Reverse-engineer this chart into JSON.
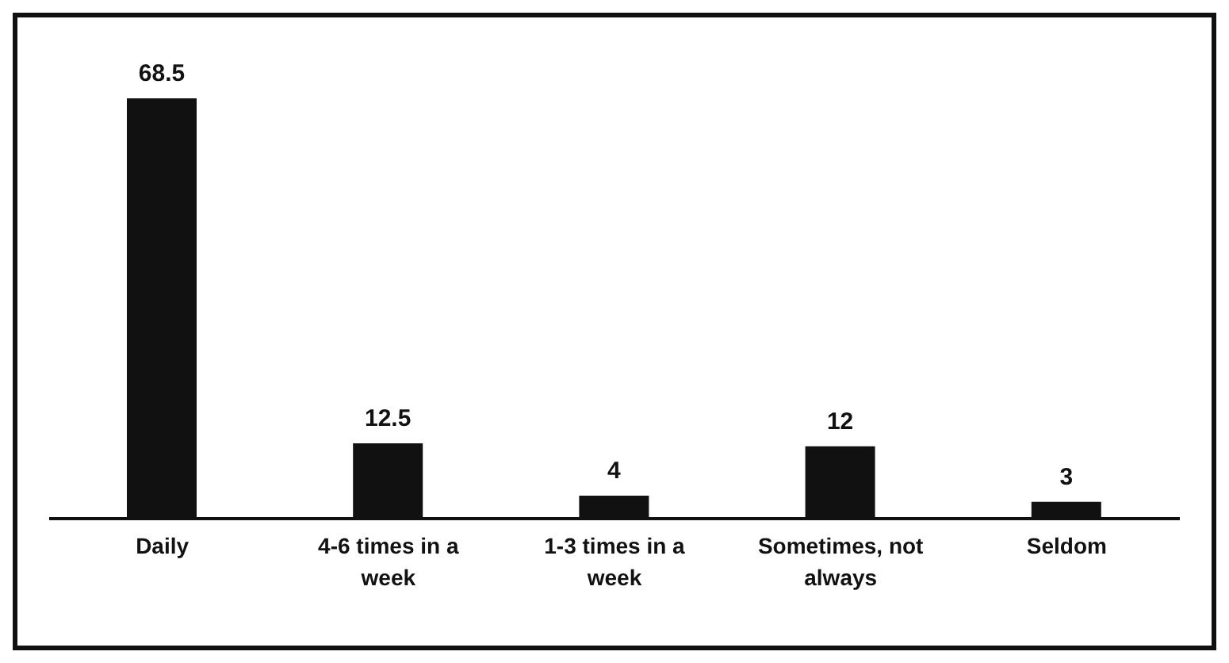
{
  "chart_data": {
    "type": "bar",
    "categories": [
      "Daily",
      "4-6 times in a week",
      "1-3 times in a week",
      "Sometimes, not always",
      "Seldom"
    ],
    "values": [
      68.5,
      12.5,
      4,
      12,
      3
    ],
    "color": "#111111",
    "data_labels": true
  }
}
